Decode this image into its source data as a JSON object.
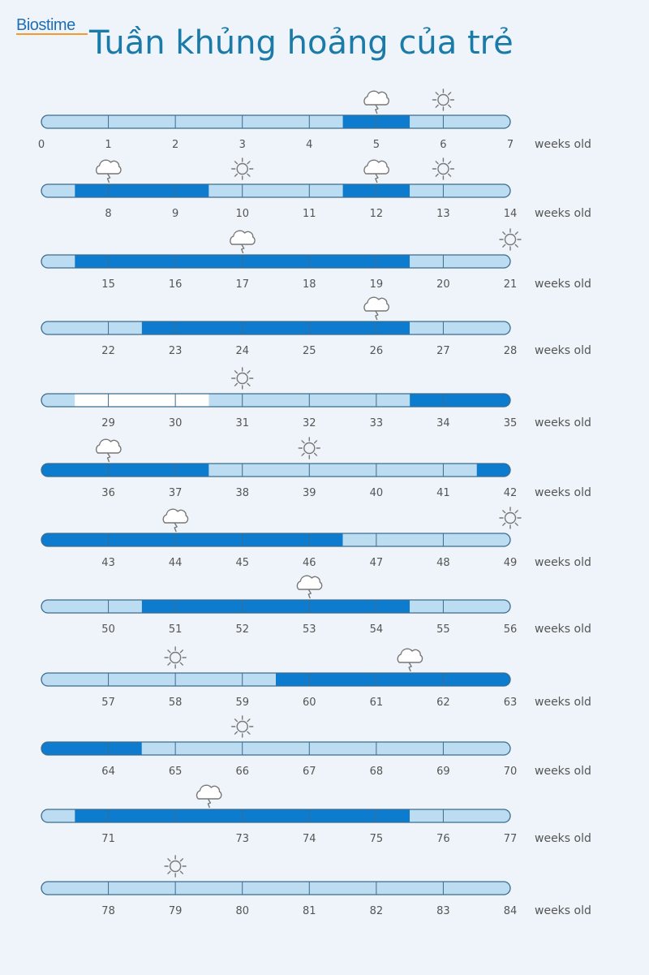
{
  "header": {
    "logo": "Biostime",
    "title": "Tuần khủng hoảng của trẻ"
  },
  "chart_data": {
    "type": "timeline",
    "unit_label": "weeks old",
    "colors": {
      "normal": "#bcdcf2",
      "crisis": "#0d7ccf",
      "white": "#ffffff",
      "outline": "#3d6c8e",
      "icon": "#777777"
    },
    "rows": [
      {
        "start": 0,
        "ticks": [
          "0",
          "1",
          "2",
          "3",
          "4",
          "5",
          "6",
          "7"
        ],
        "segments": [
          {
            "from": 0,
            "to": 4.5,
            "state": "normal"
          },
          {
            "from": 4.5,
            "to": 5.5,
            "state": "crisis"
          },
          {
            "from": 5.5,
            "to": 7,
            "state": "normal"
          }
        ],
        "icons": [
          {
            "week": 5,
            "kind": "storm"
          },
          {
            "week": 6,
            "kind": "sun"
          }
        ]
      },
      {
        "start": 7,
        "ticks": [
          "",
          "8",
          "9",
          "10",
          "11",
          "12",
          "13",
          "14"
        ],
        "segments": [
          {
            "from": 7,
            "to": 7.5,
            "state": "normal"
          },
          {
            "from": 7.5,
            "to": 9.5,
            "state": "crisis"
          },
          {
            "from": 9.5,
            "to": 11.5,
            "state": "normal"
          },
          {
            "from": 11.5,
            "to": 12.5,
            "state": "crisis"
          },
          {
            "from": 12.5,
            "to": 14,
            "state": "normal"
          }
        ],
        "icons": [
          {
            "week": 8,
            "kind": "storm"
          },
          {
            "week": 10,
            "kind": "sun"
          },
          {
            "week": 12,
            "kind": "storm"
          },
          {
            "week": 13,
            "kind": "sun"
          }
        ]
      },
      {
        "start": 14,
        "ticks": [
          "",
          "15",
          "16",
          "17",
          "18",
          "19",
          "20",
          "21"
        ],
        "segments": [
          {
            "from": 14,
            "to": 14.5,
            "state": "normal"
          },
          {
            "from": 14.5,
            "to": 19.5,
            "state": "crisis"
          },
          {
            "from": 19.5,
            "to": 21,
            "state": "normal"
          }
        ],
        "icons": [
          {
            "week": 17,
            "kind": "storm"
          },
          {
            "week": 21,
            "kind": "sun"
          }
        ]
      },
      {
        "start": 21,
        "ticks": [
          "",
          "22",
          "23",
          "24",
          "25",
          "26",
          "27",
          "28"
        ],
        "segments": [
          {
            "from": 21,
            "to": 22.5,
            "state": "normal"
          },
          {
            "from": 22.5,
            "to": 26.5,
            "state": "crisis"
          },
          {
            "from": 26.5,
            "to": 28,
            "state": "normal"
          }
        ],
        "icons": [
          {
            "week": 26,
            "kind": "storm"
          }
        ]
      },
      {
        "start": 28,
        "ticks": [
          "",
          "29",
          "30",
          "31",
          "32",
          "33",
          "34",
          "35"
        ],
        "segments": [
          {
            "from": 28,
            "to": 28.5,
            "state": "normal"
          },
          {
            "from": 28.5,
            "to": 30.5,
            "state": "white"
          },
          {
            "from": 30.5,
            "to": 33.5,
            "state": "normal"
          },
          {
            "from": 33.5,
            "to": 35,
            "state": "crisis"
          }
        ],
        "icons": [
          {
            "week": 31,
            "kind": "sun"
          }
        ]
      },
      {
        "start": 35,
        "ticks": [
          "",
          "36",
          "37",
          "38",
          "39",
          "40",
          "41",
          "42"
        ],
        "segments": [
          {
            "from": 35,
            "to": 37.5,
            "state": "crisis"
          },
          {
            "from": 37.5,
            "to": 41.5,
            "state": "normal"
          },
          {
            "from": 41.5,
            "to": 42,
            "state": "crisis"
          }
        ],
        "icons": [
          {
            "week": 36,
            "kind": "storm"
          },
          {
            "week": 39,
            "kind": "sun"
          }
        ]
      },
      {
        "start": 42,
        "ticks": [
          "",
          "43",
          "44",
          "45",
          "46",
          "47",
          "48",
          "49"
        ],
        "segments": [
          {
            "from": 42,
            "to": 46.5,
            "state": "crisis"
          },
          {
            "from": 46.5,
            "to": 49,
            "state": "normal"
          }
        ],
        "icons": [
          {
            "week": 44,
            "kind": "storm"
          },
          {
            "week": 49,
            "kind": "sun"
          }
        ]
      },
      {
        "start": 49,
        "ticks": [
          "",
          "50",
          "51",
          "52",
          "53",
          "54",
          "55",
          "56"
        ],
        "segments": [
          {
            "from": 49,
            "to": 50.5,
            "state": "normal"
          },
          {
            "from": 50.5,
            "to": 54.5,
            "state": "crisis"
          },
          {
            "from": 54.5,
            "to": 56,
            "state": "normal"
          }
        ],
        "icons": [
          {
            "week": 53,
            "kind": "storm"
          }
        ]
      },
      {
        "start": 56,
        "ticks": [
          "",
          "57",
          "58",
          "59",
          "60",
          "61",
          "62",
          "63"
        ],
        "segments": [
          {
            "from": 56,
            "to": 59.5,
            "state": "normal"
          },
          {
            "from": 59.5,
            "to": 63,
            "state": "crisis"
          }
        ],
        "icons": [
          {
            "week": 58,
            "kind": "sun"
          },
          {
            "week": 61.5,
            "kind": "storm"
          }
        ]
      },
      {
        "start": 63,
        "ticks": [
          "",
          "64",
          "65",
          "66",
          "67",
          "68",
          "69",
          "70"
        ],
        "segments": [
          {
            "from": 63,
            "to": 64.5,
            "state": "crisis"
          },
          {
            "from": 64.5,
            "to": 70,
            "state": "normal"
          }
        ],
        "icons": [
          {
            "week": 66,
            "kind": "sun"
          }
        ]
      },
      {
        "start": 70,
        "ticks": [
          "",
          "71",
          "",
          "73",
          "74",
          "75",
          "76",
          "77"
        ],
        "segments": [
          {
            "from": 70,
            "to": 70.5,
            "state": "normal"
          },
          {
            "from": 70.5,
            "to": 75.5,
            "state": "crisis"
          },
          {
            "from": 75.5,
            "to": 77,
            "state": "normal"
          }
        ],
        "icons": [
          {
            "week": 72.5,
            "kind": "storm"
          }
        ]
      },
      {
        "start": 77,
        "ticks": [
          "",
          "78",
          "79",
          "80",
          "81",
          "82",
          "83",
          "84"
        ],
        "segments": [
          {
            "from": 77,
            "to": 84,
            "state": "normal"
          }
        ],
        "icons": [
          {
            "week": 79,
            "kind": "sun"
          }
        ]
      }
    ]
  }
}
